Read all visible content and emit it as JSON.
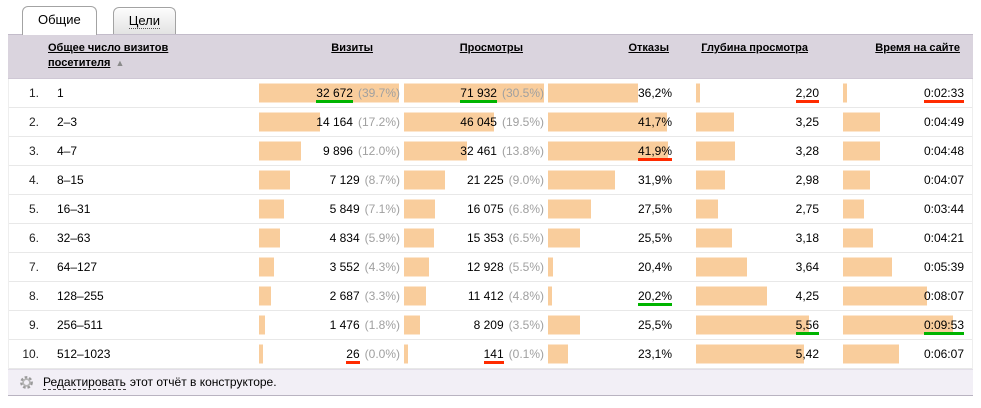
{
  "tabs": [
    {
      "label": "Общие",
      "active": true
    },
    {
      "label": "Цели",
      "active": false
    }
  ],
  "colors": {
    "bar": "#f9cd9c",
    "header_bg": "#dad4de",
    "footer_bg": "#f2eff6",
    "mark_max_underline": "#00b400",
    "mark_min_underline": "#ff2b00",
    "pct_text": "#a0a0a0"
  },
  "table": {
    "headers": {
      "dimension": "Общее число визитов посетителя",
      "sort_arrow": "▲",
      "visits": "Визиты",
      "views": "Просмотры",
      "bounces": "Отказы",
      "depth": "Глубина просмотра",
      "time": "Время на сайте"
    },
    "rows": [
      {
        "num": "1.",
        "label": "1",
        "visits": {
          "text": "32 672",
          "pct": "(39.7%)",
          "n": 32672,
          "mark": "max"
        },
        "views": {
          "text": "71 932",
          "pct": "(30.5%)",
          "n": 71932,
          "mark": "max"
        },
        "bounce": {
          "text": "36,2%",
          "n": 36.2
        },
        "depth": {
          "text": "2,20",
          "n": 2.2,
          "mark": "min"
        },
        "time": {
          "text": "0:02:33",
          "n": 153,
          "mark": "min"
        }
      },
      {
        "num": "2.",
        "label": "2–3",
        "visits": {
          "text": "14 164",
          "pct": "(17.2%)",
          "n": 14164
        },
        "views": {
          "text": "46 045",
          "pct": "(19.5%)",
          "n": 46045
        },
        "bounce": {
          "text": "41,7%",
          "n": 41.7
        },
        "depth": {
          "text": "3,25",
          "n": 3.25
        },
        "time": {
          "text": "0:04:49",
          "n": 289
        }
      },
      {
        "num": "3.",
        "label": "4–7",
        "visits": {
          "text": "9 896",
          "pct": "(12.0%)",
          "n": 9896
        },
        "views": {
          "text": "32 461",
          "pct": "(13.8%)",
          "n": 32461
        },
        "bounce": {
          "text": "41,9%",
          "n": 41.9,
          "mark": "min"
        },
        "depth": {
          "text": "3,28",
          "n": 3.28
        },
        "time": {
          "text": "0:04:48",
          "n": 288
        }
      },
      {
        "num": "4.",
        "label": "8–15",
        "visits": {
          "text": "7 129",
          "pct": "(8.7%)",
          "n": 7129
        },
        "views": {
          "text": "21 225",
          "pct": "(9.0%)",
          "n": 21225
        },
        "bounce": {
          "text": "31,9%",
          "n": 31.9
        },
        "depth": {
          "text": "2,98",
          "n": 2.98
        },
        "time": {
          "text": "0:04:07",
          "n": 247
        }
      },
      {
        "num": "5.",
        "label": "16–31",
        "visits": {
          "text": "5 849",
          "pct": "(7.1%)",
          "n": 5849
        },
        "views": {
          "text": "16 075",
          "pct": "(6.8%)",
          "n": 16075
        },
        "bounce": {
          "text": "27,5%",
          "n": 27.5
        },
        "depth": {
          "text": "2,75",
          "n": 2.75
        },
        "time": {
          "text": "0:03:44",
          "n": 224
        }
      },
      {
        "num": "6.",
        "label": "32–63",
        "visits": {
          "text": "4 834",
          "pct": "(5.9%)",
          "n": 4834
        },
        "views": {
          "text": "15 353",
          "pct": "(6.5%)",
          "n": 15353
        },
        "bounce": {
          "text": "25,5%",
          "n": 25.5
        },
        "depth": {
          "text": "3,18",
          "n": 3.18
        },
        "time": {
          "text": "0:04:21",
          "n": 261
        }
      },
      {
        "num": "7.",
        "label": "64–127",
        "visits": {
          "text": "3 552",
          "pct": "(4.3%)",
          "n": 3552
        },
        "views": {
          "text": "12 928",
          "pct": "(5.5%)",
          "n": 12928
        },
        "bounce": {
          "text": "20,4%",
          "n": 20.4
        },
        "depth": {
          "text": "3,64",
          "n": 3.64
        },
        "time": {
          "text": "0:05:39",
          "n": 339
        }
      },
      {
        "num": "8.",
        "label": "128–255",
        "visits": {
          "text": "2 687",
          "pct": "(3.3%)",
          "n": 2687
        },
        "views": {
          "text": "11 412",
          "pct": "(4.8%)",
          "n": 11412
        },
        "bounce": {
          "text": "20,2%",
          "n": 20.2,
          "mark": "max"
        },
        "depth": {
          "text": "4,25",
          "n": 4.25
        },
        "time": {
          "text": "0:08:07",
          "n": 487
        }
      },
      {
        "num": "9.",
        "label": "256–511",
        "visits": {
          "text": "1 476",
          "pct": "(1.8%)",
          "n": 1476
        },
        "views": {
          "text": "8 209",
          "pct": "(3.5%)",
          "n": 8209
        },
        "bounce": {
          "text": "25,5%",
          "n": 25.5
        },
        "depth": {
          "text": "5,56",
          "n": 5.56,
          "mark": "max"
        },
        "time": {
          "text": "0:09:53",
          "n": 593,
          "mark": "max"
        }
      },
      {
        "num": "10.",
        "label": "512–1023",
        "visits": {
          "text": "26",
          "pct": "(0.0%)",
          "n": 26,
          "mark": "min"
        },
        "views": {
          "text": "141",
          "pct": "(0.1%)",
          "n": 141,
          "mark": "min"
        },
        "bounce": {
          "text": "23,1%",
          "n": 23.1
        },
        "depth": {
          "text": "5,42",
          "n": 5.42
        },
        "time": {
          "text": "0:06:07",
          "n": 367
        }
      }
    ]
  },
  "footer": {
    "link": "Редактировать",
    "rest": "этот отчёт в конструкторе."
  },
  "chart_data": {
    "type": "table",
    "title": "Общее число визитов посетителя",
    "categories": [
      "1",
      "2–3",
      "4–7",
      "8–15",
      "16–31",
      "32–63",
      "64–127",
      "128–255",
      "256–511",
      "512–1023"
    ],
    "series": [
      {
        "name": "Визиты",
        "values": [
          32672,
          14164,
          9896,
          7129,
          5849,
          4834,
          3552,
          2687,
          1476,
          26
        ]
      },
      {
        "name": "Визиты, %",
        "values": [
          39.7,
          17.2,
          12.0,
          8.7,
          7.1,
          5.9,
          4.3,
          3.3,
          1.8,
          0.0
        ]
      },
      {
        "name": "Просмотры",
        "values": [
          71932,
          46045,
          32461,
          21225,
          16075,
          15353,
          12928,
          11412,
          8209,
          141
        ]
      },
      {
        "name": "Просмотры, %",
        "values": [
          30.5,
          19.5,
          13.8,
          9.0,
          6.8,
          6.5,
          5.5,
          4.8,
          3.5,
          0.1
        ]
      },
      {
        "name": "Отказы, %",
        "values": [
          36.2,
          41.7,
          41.9,
          31.9,
          27.5,
          25.5,
          20.4,
          20.2,
          25.5,
          23.1
        ]
      },
      {
        "name": "Глубина просмотра",
        "values": [
          2.2,
          3.25,
          3.28,
          2.98,
          2.75,
          3.18,
          3.64,
          4.25,
          5.56,
          5.42
        ]
      },
      {
        "name": "Время на сайте, сек",
        "values": [
          153,
          289,
          288,
          247,
          224,
          261,
          339,
          487,
          593,
          367
        ]
      },
      {
        "name": "Время на сайте",
        "values": [
          "0:02:33",
          "0:04:49",
          "0:04:48",
          "0:04:07",
          "0:03:44",
          "0:04:21",
          "0:05:39",
          "0:08:07",
          "0:09:53",
          "0:06:07"
        ]
      }
    ],
    "legend_position": "none",
    "grid": false
  }
}
